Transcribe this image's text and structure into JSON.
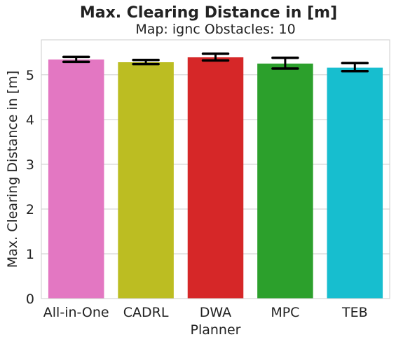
{
  "chart_data": {
    "type": "bar",
    "title": "Max. Clearing Distance in [m]",
    "subtitle": "Map: ignc Obstacles: 10",
    "xlabel": "Planner",
    "ylabel": "Max. Clearing Distance in [m]",
    "categories": [
      "All-in-One",
      "CADRL",
      "DWA",
      "MPC",
      "TEB"
    ],
    "values": [
      5.34,
      5.28,
      5.39,
      5.25,
      5.16
    ],
    "error_low": [
      5.29,
      5.24,
      5.32,
      5.14,
      5.08
    ],
    "error_high": [
      5.4,
      5.33,
      5.47,
      5.38,
      5.26
    ],
    "colors": [
      "#e377c2",
      "#bcbd22",
      "#d62728",
      "#2ca02c",
      "#17becf"
    ],
    "ylim": [
      0,
      5.78
    ],
    "yticks": [
      0,
      1,
      2,
      3,
      4,
      5
    ],
    "grid": true,
    "style": "whitegrid"
  }
}
